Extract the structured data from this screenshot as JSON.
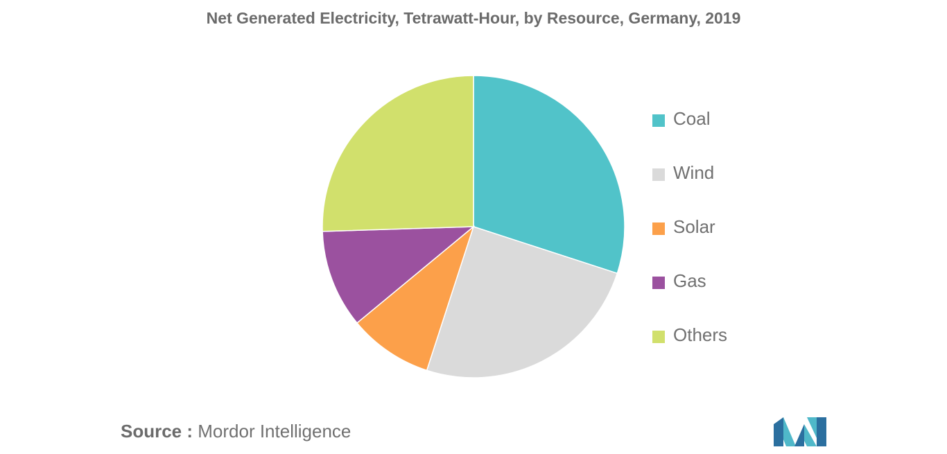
{
  "chart_data": {
    "type": "pie",
    "title": "Net Generated Electricity, Tetrawatt-Hour, by Resource, Germany, 2019",
    "categories": [
      "Coal",
      "Wind",
      "Solar",
      "Gas",
      "Others"
    ],
    "values": [
      30,
      25,
      9,
      10.5,
      25.5
    ],
    "colors": [
      "#51c3c9",
      "#dadada",
      "#fca04a",
      "#9b519f",
      "#d1e06c"
    ],
    "legend_position": "right"
  },
  "source": {
    "prefix": "Source :",
    "text": " Mordor Intelligence"
  },
  "logo": {
    "icon": "mordor-intelligence-logo",
    "colors": [
      "#2b6f9f",
      "#4fb8c9"
    ]
  }
}
